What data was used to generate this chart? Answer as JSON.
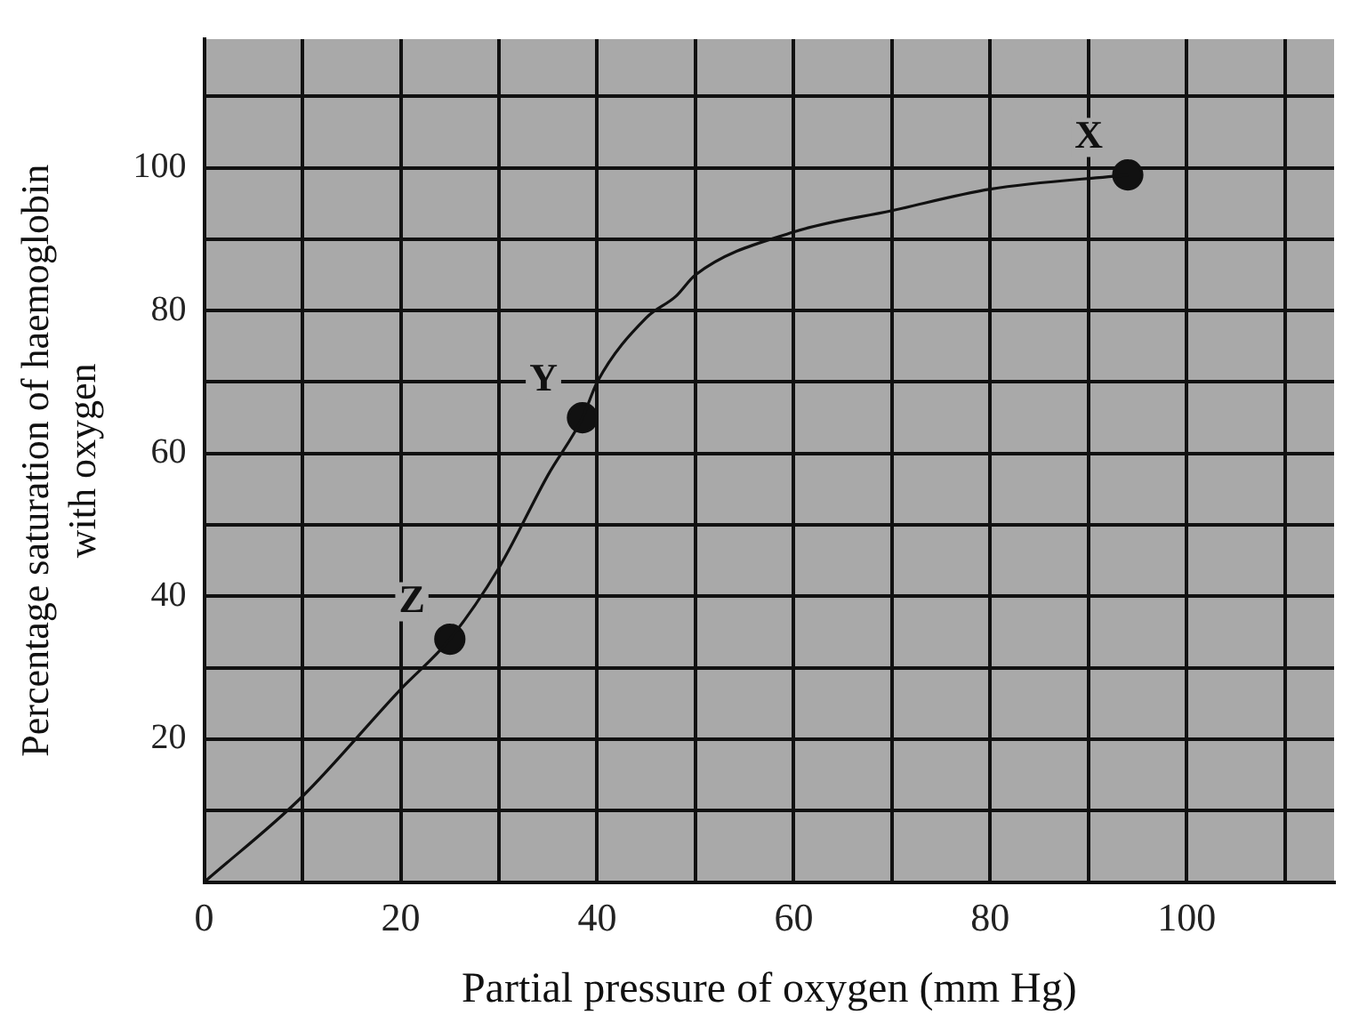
{
  "chart_data": {
    "type": "line",
    "xlabel": "Partial pressure of oxygen (mm Hg)",
    "ylabel": "Percentage saturation of haemoglobin\nwith oxygen",
    "xlim": [
      0,
      115
    ],
    "ylim": [
      0,
      118
    ],
    "xticks": [
      0,
      {
        "value": 10,
        "label": null
      },
      20,
      {
        "value": 30,
        "label": null
      },
      40,
      {
        "value": 50,
        "label": null
      },
      60,
      {
        "value": 70,
        "label": null
      },
      80,
      {
        "value": 90,
        "label": null
      },
      100,
      {
        "value": 110,
        "label": null
      }
    ],
    "yticks": [
      {
        "value": 10,
        "label": null
      },
      20,
      {
        "value": 30,
        "label": null
      },
      40,
      {
        "value": 50,
        "label": null
      },
      60,
      {
        "value": 70,
        "label": null
      },
      80,
      {
        "value": 90,
        "label": null
      },
      100,
      {
        "value": 110,
        "label": null
      }
    ],
    "grid": true,
    "legend": false,
    "series": [
      {
        "color": "#111111",
        "marker": "none",
        "x": [
          0,
          10,
          20,
          25,
          30,
          35,
          38.5,
          40,
          45,
          48,
          50,
          60,
          70,
          80,
          94
        ],
        "values": [
          0,
          12,
          27,
          34,
          44,
          57,
          65,
          70,
          79,
          82,
          85,
          91,
          94,
          97,
          99
        ]
      },
      {
        "type": "scatter",
        "color": "#111111",
        "marker": "circle",
        "x": [
          94,
          38.5,
          25
        ],
        "values": [
          99,
          65,
          34
        ]
      }
    ],
    "annotations": [
      {
        "text": "X",
        "x": 94,
        "y": 99
      },
      {
        "text": "Y",
        "x": 38.5,
        "y": 65
      },
      {
        "text": "Z",
        "x": 25,
        "y": 34
      }
    ]
  }
}
